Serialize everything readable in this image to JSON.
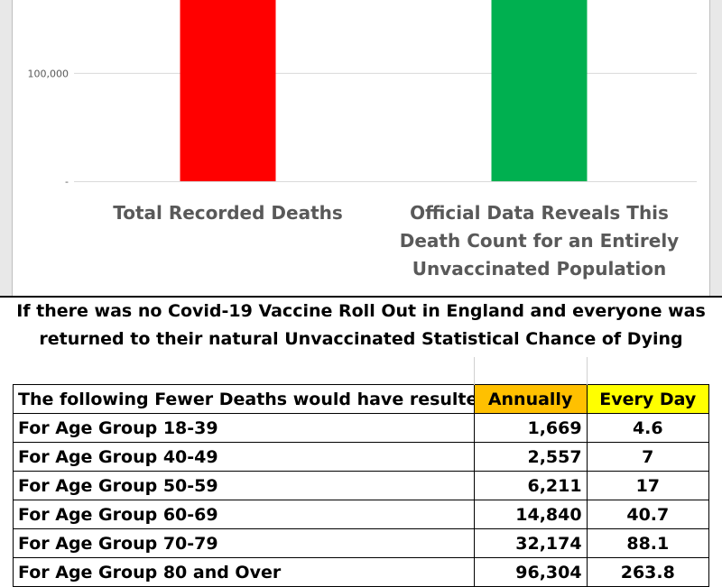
{
  "chart_data": {
    "type": "bar",
    "categories": [
      "Total Recorded Deaths",
      "Official Data Reveals This Death Count for an Entirely Unvaccinated Population"
    ],
    "category_lines": [
      [
        "Total Recorded Deaths"
      ],
      [
        "Official Data Reveals This",
        "Death Count for an Entirely",
        "Unvaccinated Population"
      ]
    ],
    "bar_colors": [
      "#ff0000",
      "#00b050"
    ],
    "y_ticks": [
      {
        "value": 0,
        "label": "-"
      },
      {
        "value": 100000,
        "label": "100,000"
      }
    ],
    "ylim_visible": [
      0,
      168000
    ],
    "values_visible": [
      168000,
      168000
    ],
    "note": ""
  },
  "heading": {
    "line1": "If there was no Covid-19 Vaccine Roll Out in England and everyone was",
    "line2": "returned to their natural Unvaccinated Statistical Chance of Dying"
  },
  "table": {
    "header": {
      "label": "The following Fewer Deaths would have resulted",
      "annually": "Annually",
      "every_day": "Every Day"
    },
    "rows": [
      {
        "group": "For Age Group 18-39",
        "annually": "1,669",
        "every_day": "4.6"
      },
      {
        "group": "For Age Group 40-49",
        "annually": "2,557",
        "every_day": "7"
      },
      {
        "group": "For Age Group 50-59",
        "annually": "6,211",
        "every_day": "17"
      },
      {
        "group": "For Age Group 60-69",
        "annually": "14,840",
        "every_day": "40.7"
      },
      {
        "group": "For Age Group 70-79",
        "annually": "32,174",
        "every_day": "88.1"
      },
      {
        "group": "For Age Group 80 and Over",
        "annually": "96,304",
        "every_day": "263.8"
      }
    ]
  }
}
